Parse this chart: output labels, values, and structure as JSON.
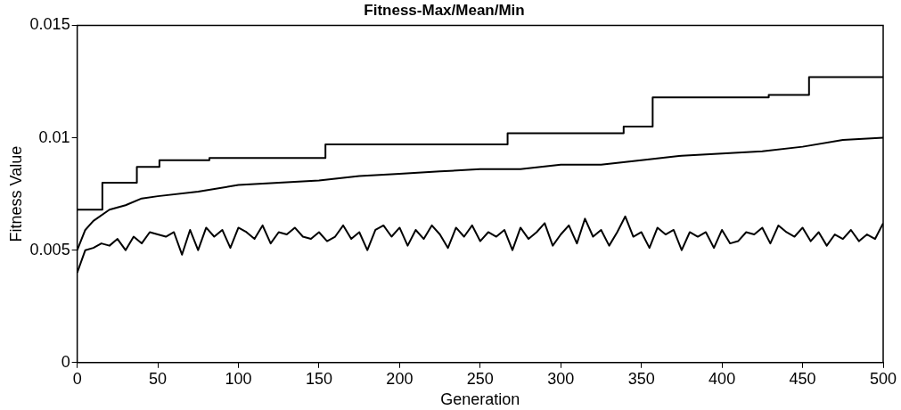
{
  "chart_data": {
    "type": "line",
    "title": "Fitness-Max/Mean/Min",
    "xlabel": "Generation",
    "ylabel": "Fitness Value",
    "xlim": [
      0,
      500
    ],
    "ylim": [
      0,
      0.015
    ],
    "xticks": [
      0,
      50,
      100,
      150,
      200,
      250,
      300,
      350,
      400,
      450,
      500
    ],
    "yticks": [
      0,
      0.005,
      0.01,
      0.015
    ],
    "series": [
      {
        "type": "step",
        "color": "#000000",
        "x": [
          0,
          15.6,
          37,
          51,
          82,
          154,
          174,
          267,
          339,
          357,
          429,
          454,
          500
        ],
        "values": [
          0.0068,
          0.008,
          0.0087,
          0.009,
          0.0091,
          0.0097,
          0.0097,
          0.0102,
          0.0105,
          0.0118,
          0.0119,
          0.0127,
          0.0127
        ]
      },
      {
        "type": "line",
        "color": "#000000",
        "x": [
          0,
          5,
          10,
          20,
          30,
          40,
          50,
          75,
          100,
          125,
          150,
          175,
          200,
          225,
          250,
          275,
          300,
          325,
          350,
          375,
          400,
          425,
          450,
          475,
          500
        ],
        "values": [
          0.005,
          0.0059,
          0.0063,
          0.0068,
          0.007,
          0.0073,
          0.0074,
          0.0076,
          0.0079,
          0.008,
          0.0081,
          0.0083,
          0.0084,
          0.0085,
          0.0086,
          0.0086,
          0.0088,
          0.0088,
          0.009,
          0.0092,
          0.0093,
          0.0094,
          0.0096,
          0.0099,
          0.01
        ]
      },
      {
        "type": "line",
        "color": "#000000",
        "x": [
          0,
          5,
          10,
          15,
          20,
          25,
          30,
          35,
          40,
          45,
          50,
          55,
          60,
          65,
          70,
          75,
          80,
          85,
          90,
          95,
          100,
          105,
          110,
          115,
          120,
          125,
          130,
          135,
          140,
          145,
          150,
          155,
          160,
          165,
          170,
          175,
          180,
          185,
          190,
          195,
          200,
          205,
          210,
          215,
          220,
          225,
          230,
          235,
          240,
          245,
          250,
          255,
          260,
          265,
          270,
          275,
          280,
          285,
          290,
          295,
          300,
          305,
          310,
          315,
          320,
          325,
          330,
          335,
          340,
          345,
          350,
          355,
          360,
          365,
          370,
          375,
          380,
          385,
          390,
          395,
          400,
          405,
          410,
          415,
          420,
          425,
          430,
          435,
          440,
          445,
          450,
          455,
          460,
          465,
          470,
          475,
          480,
          485,
          490,
          495,
          500
        ],
        "values": [
          0.004,
          0.005,
          0.0051,
          0.0053,
          0.0052,
          0.0055,
          0.005,
          0.0056,
          0.0053,
          0.0058,
          0.0057,
          0.0056,
          0.0058,
          0.0048,
          0.0059,
          0.005,
          0.006,
          0.0056,
          0.0059,
          0.0051,
          0.006,
          0.0058,
          0.0055,
          0.0061,
          0.0053,
          0.0058,
          0.0057,
          0.006,
          0.0056,
          0.0055,
          0.0058,
          0.0054,
          0.0056,
          0.0061,
          0.0055,
          0.0058,
          0.005,
          0.0059,
          0.0061,
          0.0056,
          0.006,
          0.0052,
          0.0059,
          0.0055,
          0.0061,
          0.0057,
          0.0051,
          0.006,
          0.0056,
          0.0061,
          0.0054,
          0.0058,
          0.0056,
          0.0059,
          0.005,
          0.006,
          0.0055,
          0.0058,
          0.0062,
          0.0052,
          0.0057,
          0.0061,
          0.0053,
          0.0064,
          0.0056,
          0.0059,
          0.0052,
          0.0058,
          0.0065,
          0.0056,
          0.0058,
          0.0051,
          0.006,
          0.0057,
          0.0059,
          0.005,
          0.0058,
          0.0056,
          0.0058,
          0.0051,
          0.0059,
          0.0053,
          0.0054,
          0.0058,
          0.0057,
          0.006,
          0.0053,
          0.0061,
          0.0058,
          0.0056,
          0.006,
          0.0054,
          0.0058,
          0.0052,
          0.0057,
          0.0055,
          0.0059,
          0.0054,
          0.0057,
          0.0055,
          0.0062
        ]
      }
    ]
  }
}
